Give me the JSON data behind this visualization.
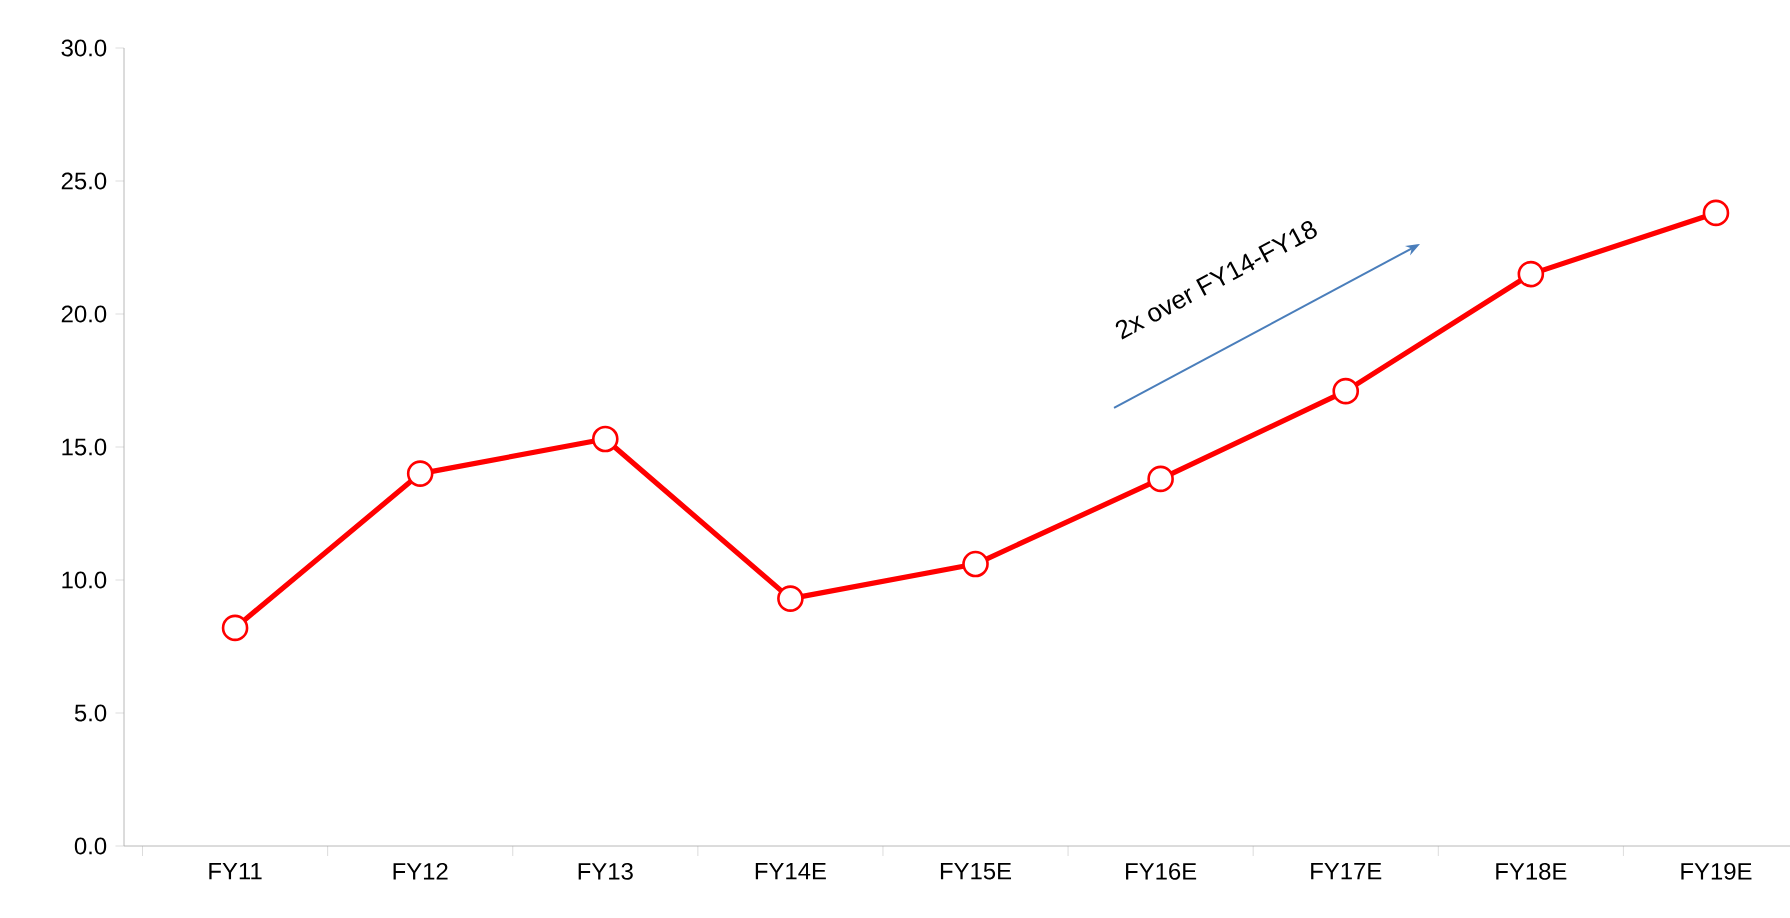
{
  "chart_data": {
    "type": "line",
    "categories": [
      "FY11",
      "FY12",
      "FY13",
      "FY14E",
      "FY15E",
      "FY16E",
      "FY17E",
      "FY18E",
      "FY19E"
    ],
    "series": [
      {
        "color": "#ff0000",
        "values": [
          8.2,
          14.0,
          15.3,
          9.3,
          10.6,
          13.8,
          17.1,
          21.5,
          23.8
        ]
      }
    ],
    "ylim": [
      0,
      30
    ],
    "yticks": [
      {
        "value": 0,
        "label": "0.0"
      },
      {
        "value": 5,
        "label": "5.0"
      },
      {
        "value": 10,
        "label": "10.0"
      },
      {
        "value": 15,
        "label": "15.0"
      },
      {
        "value": 20,
        "label": "20.0"
      },
      {
        "value": 25,
        "label": "25.0"
      },
      {
        "value": 30,
        "label": "30.0"
      }
    ],
    "marker": "circle",
    "line_style": "solid",
    "annotations": [
      "2x over FY14-FY18"
    ]
  }
}
